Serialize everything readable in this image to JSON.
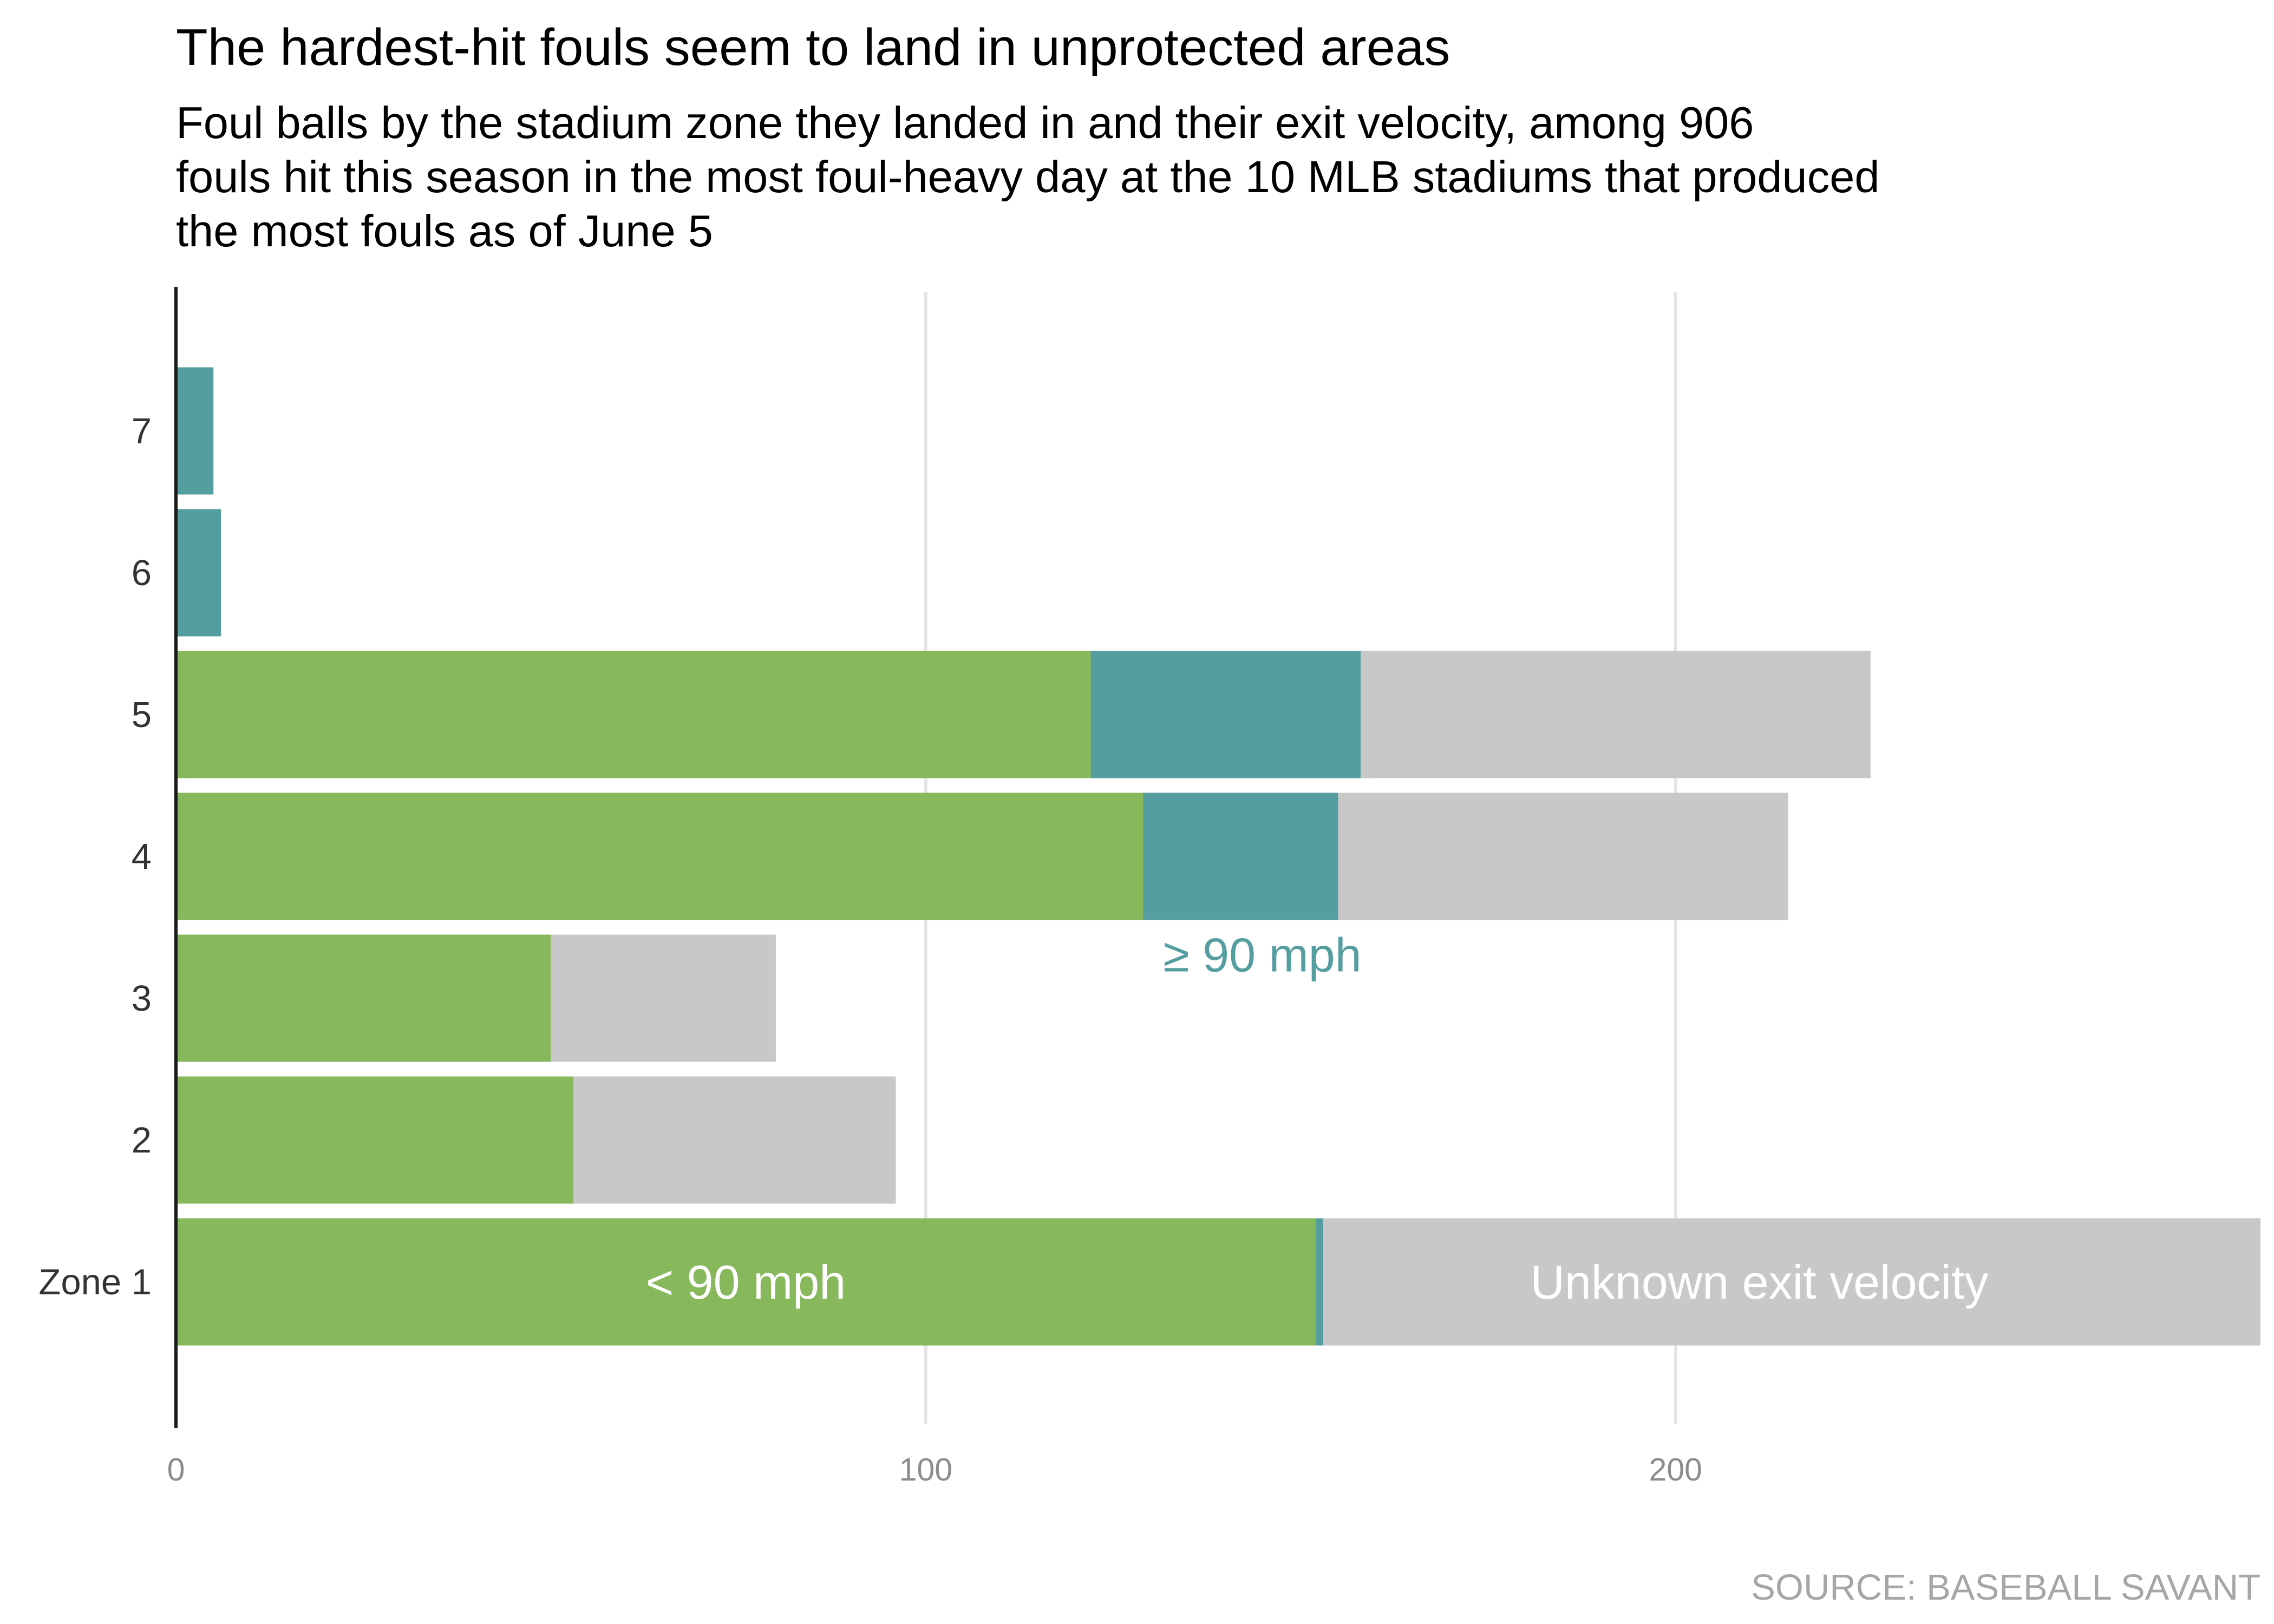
{
  "chart_data": {
    "type": "bar",
    "orientation": "horizontal",
    "stacked": true,
    "title": "The hardest-hit fouls seem to land in unprotected areas",
    "subtitle_lines": [
      "Foul balls by the stadium zone they landed in and their exit velocity, among 906",
      "fouls hit this season in the most foul-heavy day at the 10 MLB stadiums that produced",
      "the most fouls as of June 5"
    ],
    "categories": [
      "Zone 1",
      "2",
      "3",
      "4",
      "5",
      "6",
      "7"
    ],
    "series": [
      {
        "name": "< 90 mph",
        "color": "#87b85c",
        "values": [
          152,
          53,
          50,
          129,
          122,
          0,
          0
        ]
      },
      {
        "name": "≥ 90 mph",
        "color": "#559ea0",
        "values": [
          1,
          0,
          0,
          26,
          36,
          6,
          5
        ]
      },
      {
        "name": "Unknown exit velocity",
        "color": "#c8c8c8",
        "values": [
          125,
          43,
          30,
          60,
          68,
          0,
          0
        ]
      }
    ],
    "x_ticks": [
      0,
      100,
      200
    ],
    "xlim": [
      0,
      278
    ],
    "grid": true,
    "legend": "labels inside bars",
    "source": "SOURCE: BASEBALL SAVANT"
  }
}
